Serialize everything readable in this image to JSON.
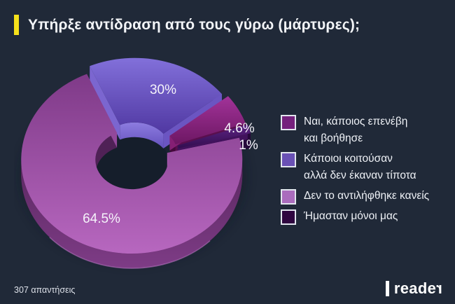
{
  "header": {
    "title": "Υπήρξε αντίδραση από τους γύρω (μάρτυρες);",
    "accent_color": "#f6e11b"
  },
  "footer": {
    "responses": "307 απαντήσεις",
    "brand_main": "reade",
    "brand_mirrored": "r"
  },
  "chart_data": {
    "type": "pie",
    "subtype": "donut-3d",
    "title": "Υπήρξε αντίδραση από τους γύρω (μάρτυρες);",
    "legend_position": "right",
    "background": "#202938",
    "responses_label": "307 απαντήσεις",
    "slices": [
      {
        "label": "Ναι, κάποιος επενέβη και βοήθησε",
        "label_line1": "Ναι, κάποιος επενέβη",
        "label_line2": "και βοήθησε",
        "value": 4.6,
        "display": "4.6%",
        "legend_color": "#75217d",
        "top_gradient": [
          "#a23399",
          "#6d1763"
        ],
        "side_color": "#4a0b40"
      },
      {
        "label": "Κάποιοι κοιτούσαν αλλά δεν έκαναν τίποτα",
        "label_line1": "Κάποιοι κοιτούσαν",
        "label_line2": "αλλά δεν έκαναν τίποτα",
        "value": 30,
        "display": "30%",
        "legend_color": "#6a51b5",
        "top_gradient": [
          "#8270da",
          "#5038a2"
        ],
        "side_color": "#6b55c2"
      },
      {
        "label": "Δεν το αντιλήφθηκε κανείς",
        "label_line1": "Δεν το αντιλήφθηκε κανείς",
        "label_line2": "",
        "value": 64.5,
        "display": "64.5%",
        "legend_color": "#aa6cbd",
        "top_gradient": [
          "#7f3a88",
          "#b767bf"
        ],
        "side_color": "#5a2760"
      },
      {
        "label": "Ήμασταν μόνοι μας",
        "label_line1": "Ήμασταν μόνοι μας",
        "label_line2": "",
        "value": 1,
        "display": "1%",
        "legend_color": "#2f0640",
        "top_gradient": [
          "#5e2384",
          "#320e4f"
        ],
        "side_color": "#1d0530"
      }
    ]
  }
}
